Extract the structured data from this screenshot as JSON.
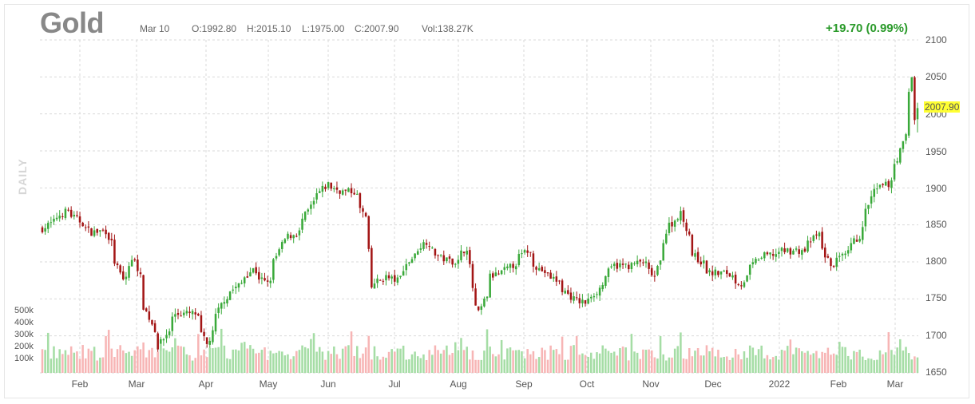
{
  "header": {
    "title": "Gold",
    "date": "Mar 10",
    "open": "O:1992.80",
    "high": "H:2015.10",
    "low": "L:1975.00",
    "close": "C:2007.90",
    "volume": "Vol:138.27K",
    "change": "+19.70 (0.99%)",
    "period": "DAILY"
  },
  "colors": {
    "up": "#3aa93a",
    "down": "#a31515",
    "vol_up": "#a5dda5",
    "vol_down": "#f7b5b5",
    "grid": "#d9d9d9",
    "highlight": "#ffff33",
    "change": "#2a9a2a"
  },
  "chart_data": {
    "type": "candlestick",
    "title": "Gold",
    "y_axis": {
      "ticks": [
        "2100",
        "2050",
        "2000",
        "1950",
        "1900",
        "1850",
        "1800",
        "1750",
        "1700",
        "1650"
      ],
      "range": [
        1650,
        2100
      ]
    },
    "x_axis": {
      "ticks": [
        "Feb",
        "Mar",
        "Apr",
        "May",
        "Jun",
        "Jul",
        "Aug",
        "Sep",
        "Oct",
        "Nov",
        "Dec",
        "2022",
        "Feb",
        "Mar"
      ]
    },
    "volume_axis": {
      "ticks": [
        "500k",
        "400k",
        "300k",
        "200k",
        "100k"
      ]
    },
    "last_price_label": "2007.90",
    "last_bar": {
      "date": "Mar 10",
      "open": 1992.8,
      "high": 2015.1,
      "low": 1975.0,
      "close": 2007.9,
      "volume": 138270
    },
    "price_path_anchors": [
      [
        "2021-01-11",
        1845
      ],
      [
        "2021-01-22",
        1870
      ],
      [
        "2021-02-03",
        1840
      ],
      [
        "2021-02-10",
        1842
      ],
      [
        "2021-02-18",
        1775
      ],
      [
        "2021-02-24",
        1805
      ],
      [
        "2021-03-01",
        1740
      ],
      [
        "2021-03-08",
        1685
      ],
      [
        "2021-03-16",
        1730
      ],
      [
        "2021-03-25",
        1730
      ],
      [
        "2021-03-31",
        1688
      ],
      [
        "2021-04-08",
        1750
      ],
      [
        "2021-04-15",
        1768
      ],
      [
        "2021-04-22",
        1790
      ],
      [
        "2021-04-29",
        1770
      ],
      [
        "2021-05-07",
        1830
      ],
      [
        "2021-05-14",
        1840
      ],
      [
        "2021-05-21",
        1880
      ],
      [
        "2021-05-28",
        1905
      ],
      [
        "2021-06-04",
        1895
      ],
      [
        "2021-06-10",
        1895
      ],
      [
        "2021-06-16",
        1860
      ],
      [
        "2021-06-18",
        1765
      ],
      [
        "2021-06-25",
        1780
      ],
      [
        "2021-07-01",
        1775
      ],
      [
        "2021-07-08",
        1805
      ],
      [
        "2021-07-15",
        1828
      ],
      [
        "2021-07-22",
        1805
      ],
      [
        "2021-07-30",
        1800
      ],
      [
        "2021-08-04",
        1820
      ],
      [
        "2021-08-06",
        1765
      ],
      [
        "2021-08-10",
        1730
      ],
      [
        "2021-08-16",
        1780
      ],
      [
        "2021-08-24",
        1790
      ],
      [
        "2021-09-02",
        1815
      ],
      [
        "2021-09-08",
        1790
      ],
      [
        "2021-09-16",
        1775
      ],
      [
        "2021-09-24",
        1750
      ],
      [
        "2021-09-30",
        1745
      ],
      [
        "2021-10-06",
        1760
      ],
      [
        "2021-10-14",
        1795
      ],
      [
        "2021-10-22",
        1795
      ],
      [
        "2021-10-28",
        1800
      ],
      [
        "2021-11-03",
        1780
      ],
      [
        "2021-11-10",
        1850
      ],
      [
        "2021-11-16",
        1865
      ],
      [
        "2021-11-22",
        1810
      ],
      [
        "2021-11-30",
        1785
      ],
      [
        "2021-12-08",
        1785
      ],
      [
        "2021-12-15",
        1770
      ],
      [
        "2021-12-23",
        1805
      ],
      [
        "2022-01-05",
        1815
      ],
      [
        "2022-01-14",
        1815
      ],
      [
        "2022-01-21",
        1838
      ],
      [
        "2022-01-27",
        1795
      ],
      [
        "2022-02-03",
        1808
      ],
      [
        "2022-02-10",
        1835
      ],
      [
        "2022-02-17",
        1895
      ],
      [
        "2022-02-24",
        1905
      ],
      [
        "2022-03-01",
        1940
      ],
      [
        "2022-03-04",
        1970
      ],
      [
        "2022-03-08",
        2050
      ],
      [
        "2022-03-09",
        1993
      ],
      [
        "2022-03-10",
        2008
      ]
    ]
  }
}
